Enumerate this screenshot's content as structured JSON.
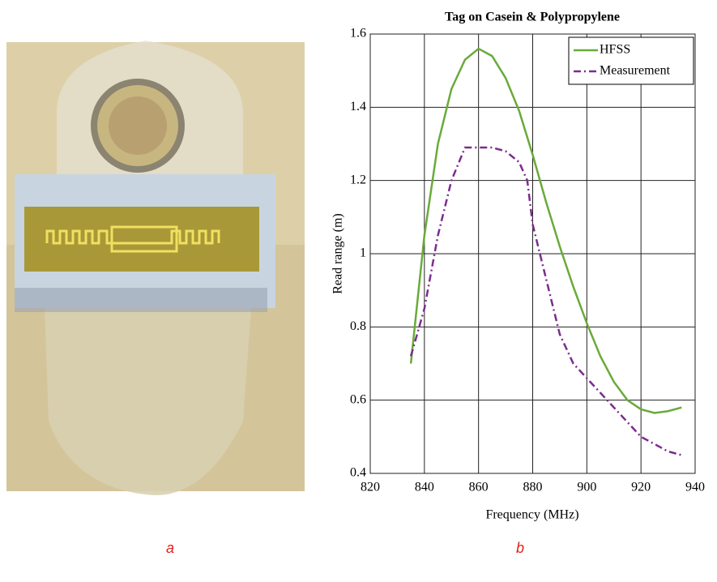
{
  "captions": [
    "a",
    "b"
  ],
  "chart_data": {
    "type": "line",
    "title": "Tag on Casein & Polypropylene",
    "x_label": "Frequency (MHz)",
    "y_label": "Read range (m)",
    "xlim": [
      820,
      940
    ],
    "xticks": [
      820,
      840,
      860,
      880,
      900,
      920,
      940
    ],
    "ylim": [
      0.4,
      1.6
    ],
    "yticks": [
      0.4,
      0.6,
      0.8,
      1,
      1.2,
      1.4,
      1.6
    ],
    "grid": true,
    "legend": "upper right",
    "series": [
      {
        "name": "HFSS",
        "color": "#6aaa3a",
        "style": "solid",
        "x": [
          835,
          840,
          845,
          850,
          855,
          860,
          865,
          870,
          875,
          880,
          885,
          890,
          895,
          900,
          905,
          910,
          915,
          920,
          925,
          930,
          935
        ],
        "values": [
          0.7,
          1.05,
          1.3,
          1.45,
          1.53,
          1.56,
          1.54,
          1.48,
          1.39,
          1.27,
          1.14,
          1.02,
          0.91,
          0.81,
          0.72,
          0.65,
          0.6,
          0.575,
          0.565,
          0.57,
          0.58
        ]
      },
      {
        "name": "Measurement",
        "color": "#7b2d8e",
        "style": "dashdot",
        "x": [
          835,
          840,
          845,
          850,
          855,
          860,
          865,
          870,
          875,
          878,
          880,
          885,
          890,
          895,
          900,
          905,
          910,
          915,
          920,
          925,
          930,
          935
        ],
        "values": [
          0.72,
          0.85,
          1.05,
          1.2,
          1.29,
          1.29,
          1.29,
          1.28,
          1.25,
          1.2,
          1.08,
          0.93,
          0.78,
          0.7,
          0.66,
          0.62,
          0.58,
          0.54,
          0.5,
          0.48,
          0.46,
          0.45
        ]
      }
    ]
  }
}
